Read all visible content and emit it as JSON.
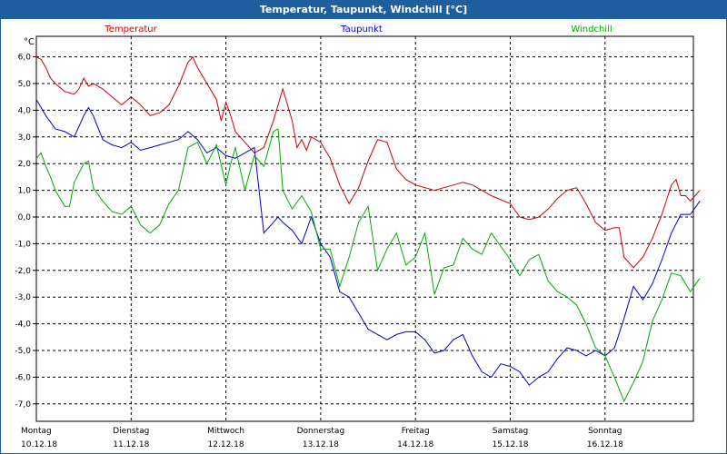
{
  "window": {
    "title": "Temperatur, Taupunkt, Windchill [°C]"
  },
  "chart_data": {
    "type": "line",
    "title": "Temperatur, Taupunkt, Windchill [°C]",
    "ylabel": "°C",
    "xlabel": "",
    "ylim": [
      -7.5,
      6.5
    ],
    "xlim": [
      0,
      7
    ],
    "grid": true,
    "legend_position": "top",
    "yticks": [
      6.0,
      5.0,
      4.0,
      3.0,
      2.0,
      1.0,
      0.0,
      -1.0,
      -2.0,
      -3.0,
      -4.0,
      -5.0,
      -6.0,
      -7.0
    ],
    "ytick_labels": [
      "6,0",
      "5,0",
      "4,0",
      "3,0",
      "2,0",
      "1,0",
      "0,0",
      "-1,0",
      "-2,0",
      "-3,0",
      "-4,0",
      "-5,0",
      "-6,0",
      "-7,0"
    ],
    "xticks": [
      {
        "day": "Montag",
        "date": "10.12.18"
      },
      {
        "day": "Dienstag",
        "date": "11.12.18"
      },
      {
        "day": "Mittwoch",
        "date": "12.12.18"
      },
      {
        "day": "Donnerstag",
        "date": "13.12.18"
      },
      {
        "day": "Freitag",
        "date": "14.12.18"
      },
      {
        "day": "Samstag",
        "date": "15.12.18"
      },
      {
        "day": "Sonntag",
        "date": "16.12.18"
      }
    ],
    "series": [
      {
        "name": "Temperatur",
        "color": "#cc0000",
        "x": [
          0,
          0.05,
          0.1,
          0.15,
          0.2,
          0.3,
          0.4,
          0.45,
          0.5,
          0.55,
          0.6,
          0.7,
          0.8,
          0.9,
          1,
          1.1,
          1.2,
          1.3,
          1.4,
          1.5,
          1.6,
          1.65,
          1.7,
          1.8,
          1.9,
          1.95,
          2,
          2.05,
          2.1,
          2.2,
          2.3,
          2.4,
          2.5,
          2.6,
          2.7,
          2.75,
          2.8,
          2.85,
          2.9,
          3,
          3.1,
          3.2,
          3.3,
          3.4,
          3.5,
          3.6,
          3.7,
          3.8,
          3.9,
          4,
          4.1,
          4.2,
          4.3,
          4.4,
          4.5,
          4.6,
          4.7,
          4.8,
          5,
          5.1,
          5.2,
          5.3,
          5.4,
          5.5,
          5.6,
          5.7,
          5.8,
          5.9,
          6,
          6.1,
          6.15,
          6.2,
          6.3,
          6.4,
          6.5,
          6.6,
          6.7,
          6.75,
          6.8,
          6.85,
          6.9,
          7
        ],
        "values": [
          6.0,
          5.9,
          5.6,
          5.2,
          5.0,
          4.7,
          4.6,
          4.8,
          5.2,
          4.9,
          5.0,
          4.8,
          4.5,
          4.2,
          4.5,
          4.2,
          3.8,
          3.9,
          4.2,
          4.9,
          5.8,
          6.0,
          5.6,
          5.0,
          4.4,
          3.6,
          4.3,
          3.8,
          3.2,
          2.8,
          2.4,
          2.6,
          3.6,
          4.8,
          3.6,
          2.6,
          2.9,
          2.5,
          3.0,
          2.8,
          2.2,
          1.2,
          0.5,
          1.1,
          2.1,
          2.9,
          2.8,
          1.8,
          1.4,
          1.2,
          1.1,
          1.0,
          1.1,
          1.2,
          1.3,
          1.2,
          1.0,
          0.8,
          0.5,
          0.0,
          -0.1,
          0.0,
          0.3,
          0.7,
          1.0,
          1.1,
          0.5,
          -0.2,
          -0.5,
          -0.4,
          -0.4,
          -1.5,
          -1.9,
          -1.5,
          -0.8,
          0.1,
          1.2,
          1.4,
          0.8,
          0.8,
          0.6,
          1.0
        ]
      },
      {
        "name": "Taupunkt",
        "color": "#0000cc",
        "x": [
          0,
          0.1,
          0.2,
          0.3,
          0.4,
          0.5,
          0.55,
          0.6,
          0.7,
          0.75,
          0.8,
          0.9,
          1,
          1.1,
          1.2,
          1.3,
          1.4,
          1.5,
          1.6,
          1.7,
          1.8,
          1.9,
          2,
          2.1,
          2.2,
          2.3,
          2.4,
          2.5,
          2.55,
          2.6,
          2.7,
          2.8,
          2.9,
          3,
          3.1,
          3.2,
          3.3,
          3.4,
          3.5,
          3.6,
          3.7,
          3.8,
          3.9,
          4,
          4.1,
          4.2,
          4.3,
          4.4,
          4.5,
          4.6,
          4.7,
          4.8,
          4.9,
          5,
          5.1,
          5.2,
          5.3,
          5.4,
          5.5,
          5.6,
          5.7,
          5.8,
          5.9,
          6,
          6.1,
          6.2,
          6.3,
          6.4,
          6.5,
          6.6,
          6.7,
          6.8,
          6.9,
          7
        ],
        "values": [
          4.4,
          3.8,
          3.3,
          3.2,
          3.0,
          3.8,
          4.1,
          3.8,
          2.9,
          2.8,
          2.7,
          2.6,
          2.8,
          2.5,
          2.6,
          2.7,
          2.8,
          2.9,
          3.2,
          2.9,
          2.4,
          2.6,
          2.3,
          2.2,
          2.4,
          2.6,
          -0.6,
          -0.2,
          0.0,
          -0.2,
          -0.5,
          -1.0,
          0.0,
          -1.0,
          -1.5,
          -2.8,
          -3.0,
          -3.6,
          -4.2,
          -4.4,
          -4.6,
          -4.4,
          -4.3,
          -4.3,
          -4.6,
          -5.1,
          -5.0,
          -4.6,
          -4.4,
          -5.2,
          -5.8,
          -6.0,
          -5.5,
          -5.6,
          -5.8,
          -6.3,
          -6.0,
          -5.8,
          -5.3,
          -4.9,
          -5.0,
          -5.2,
          -5.0,
          -5.2,
          -4.9,
          -3.8,
          -2.6,
          -3.1,
          -2.5,
          -1.6,
          -0.6,
          0.1,
          0.1,
          0.6
        ]
      },
      {
        "name": "Windchill",
        "color": "#00aa00",
        "x": [
          0,
          0.05,
          0.1,
          0.15,
          0.2,
          0.3,
          0.35,
          0.4,
          0.5,
          0.55,
          0.6,
          0.7,
          0.8,
          0.9,
          1,
          1.1,
          1.2,
          1.3,
          1.4,
          1.5,
          1.6,
          1.7,
          1.8,
          1.9,
          2,
          2.05,
          2.1,
          2.2,
          2.3,
          2.4,
          2.5,
          2.55,
          2.6,
          2.7,
          2.8,
          2.9,
          3,
          3.1,
          3.2,
          3.3,
          3.4,
          3.5,
          3.6,
          3.7,
          3.8,
          3.9,
          4,
          4.1,
          4.2,
          4.3,
          4.4,
          4.5,
          4.6,
          4.7,
          4.8,
          5,
          5.1,
          5.2,
          5.3,
          5.4,
          5.5,
          5.6,
          5.7,
          5.8,
          5.9,
          6,
          6.1,
          6.2,
          6.3,
          6.4,
          6.5,
          6.6,
          6.7,
          6.8,
          6.9,
          7
        ],
        "values": [
          2.2,
          2.4,
          1.9,
          1.5,
          1.0,
          0.4,
          0.4,
          1.3,
          2.0,
          2.1,
          1.1,
          0.6,
          0.2,
          0.1,
          0.4,
          -0.3,
          -0.6,
          -0.3,
          0.5,
          1.0,
          2.6,
          2.8,
          2.0,
          2.7,
          1.2,
          2.0,
          2.6,
          1.0,
          2.3,
          1.9,
          3.2,
          3.3,
          1.0,
          0.3,
          0.8,
          0.2,
          -1.2,
          -1.2,
          -2.6,
          -1.5,
          -0.2,
          0.4,
          -2.0,
          -1.2,
          -0.6,
          -1.8,
          -1.5,
          -0.6,
          -2.9,
          -1.9,
          -1.8,
          -0.8,
          -1.2,
          -1.4,
          -0.6,
          -1.6,
          -2.2,
          -1.6,
          -1.4,
          -2.4,
          -2.8,
          -3.0,
          -3.3,
          -4.0,
          -4.9,
          -5.2,
          -6.0,
          -6.9,
          -6.2,
          -5.4,
          -3.9,
          -3.1,
          -2.1,
          -2.2,
          -2.8,
          -2.3
        ]
      }
    ]
  }
}
